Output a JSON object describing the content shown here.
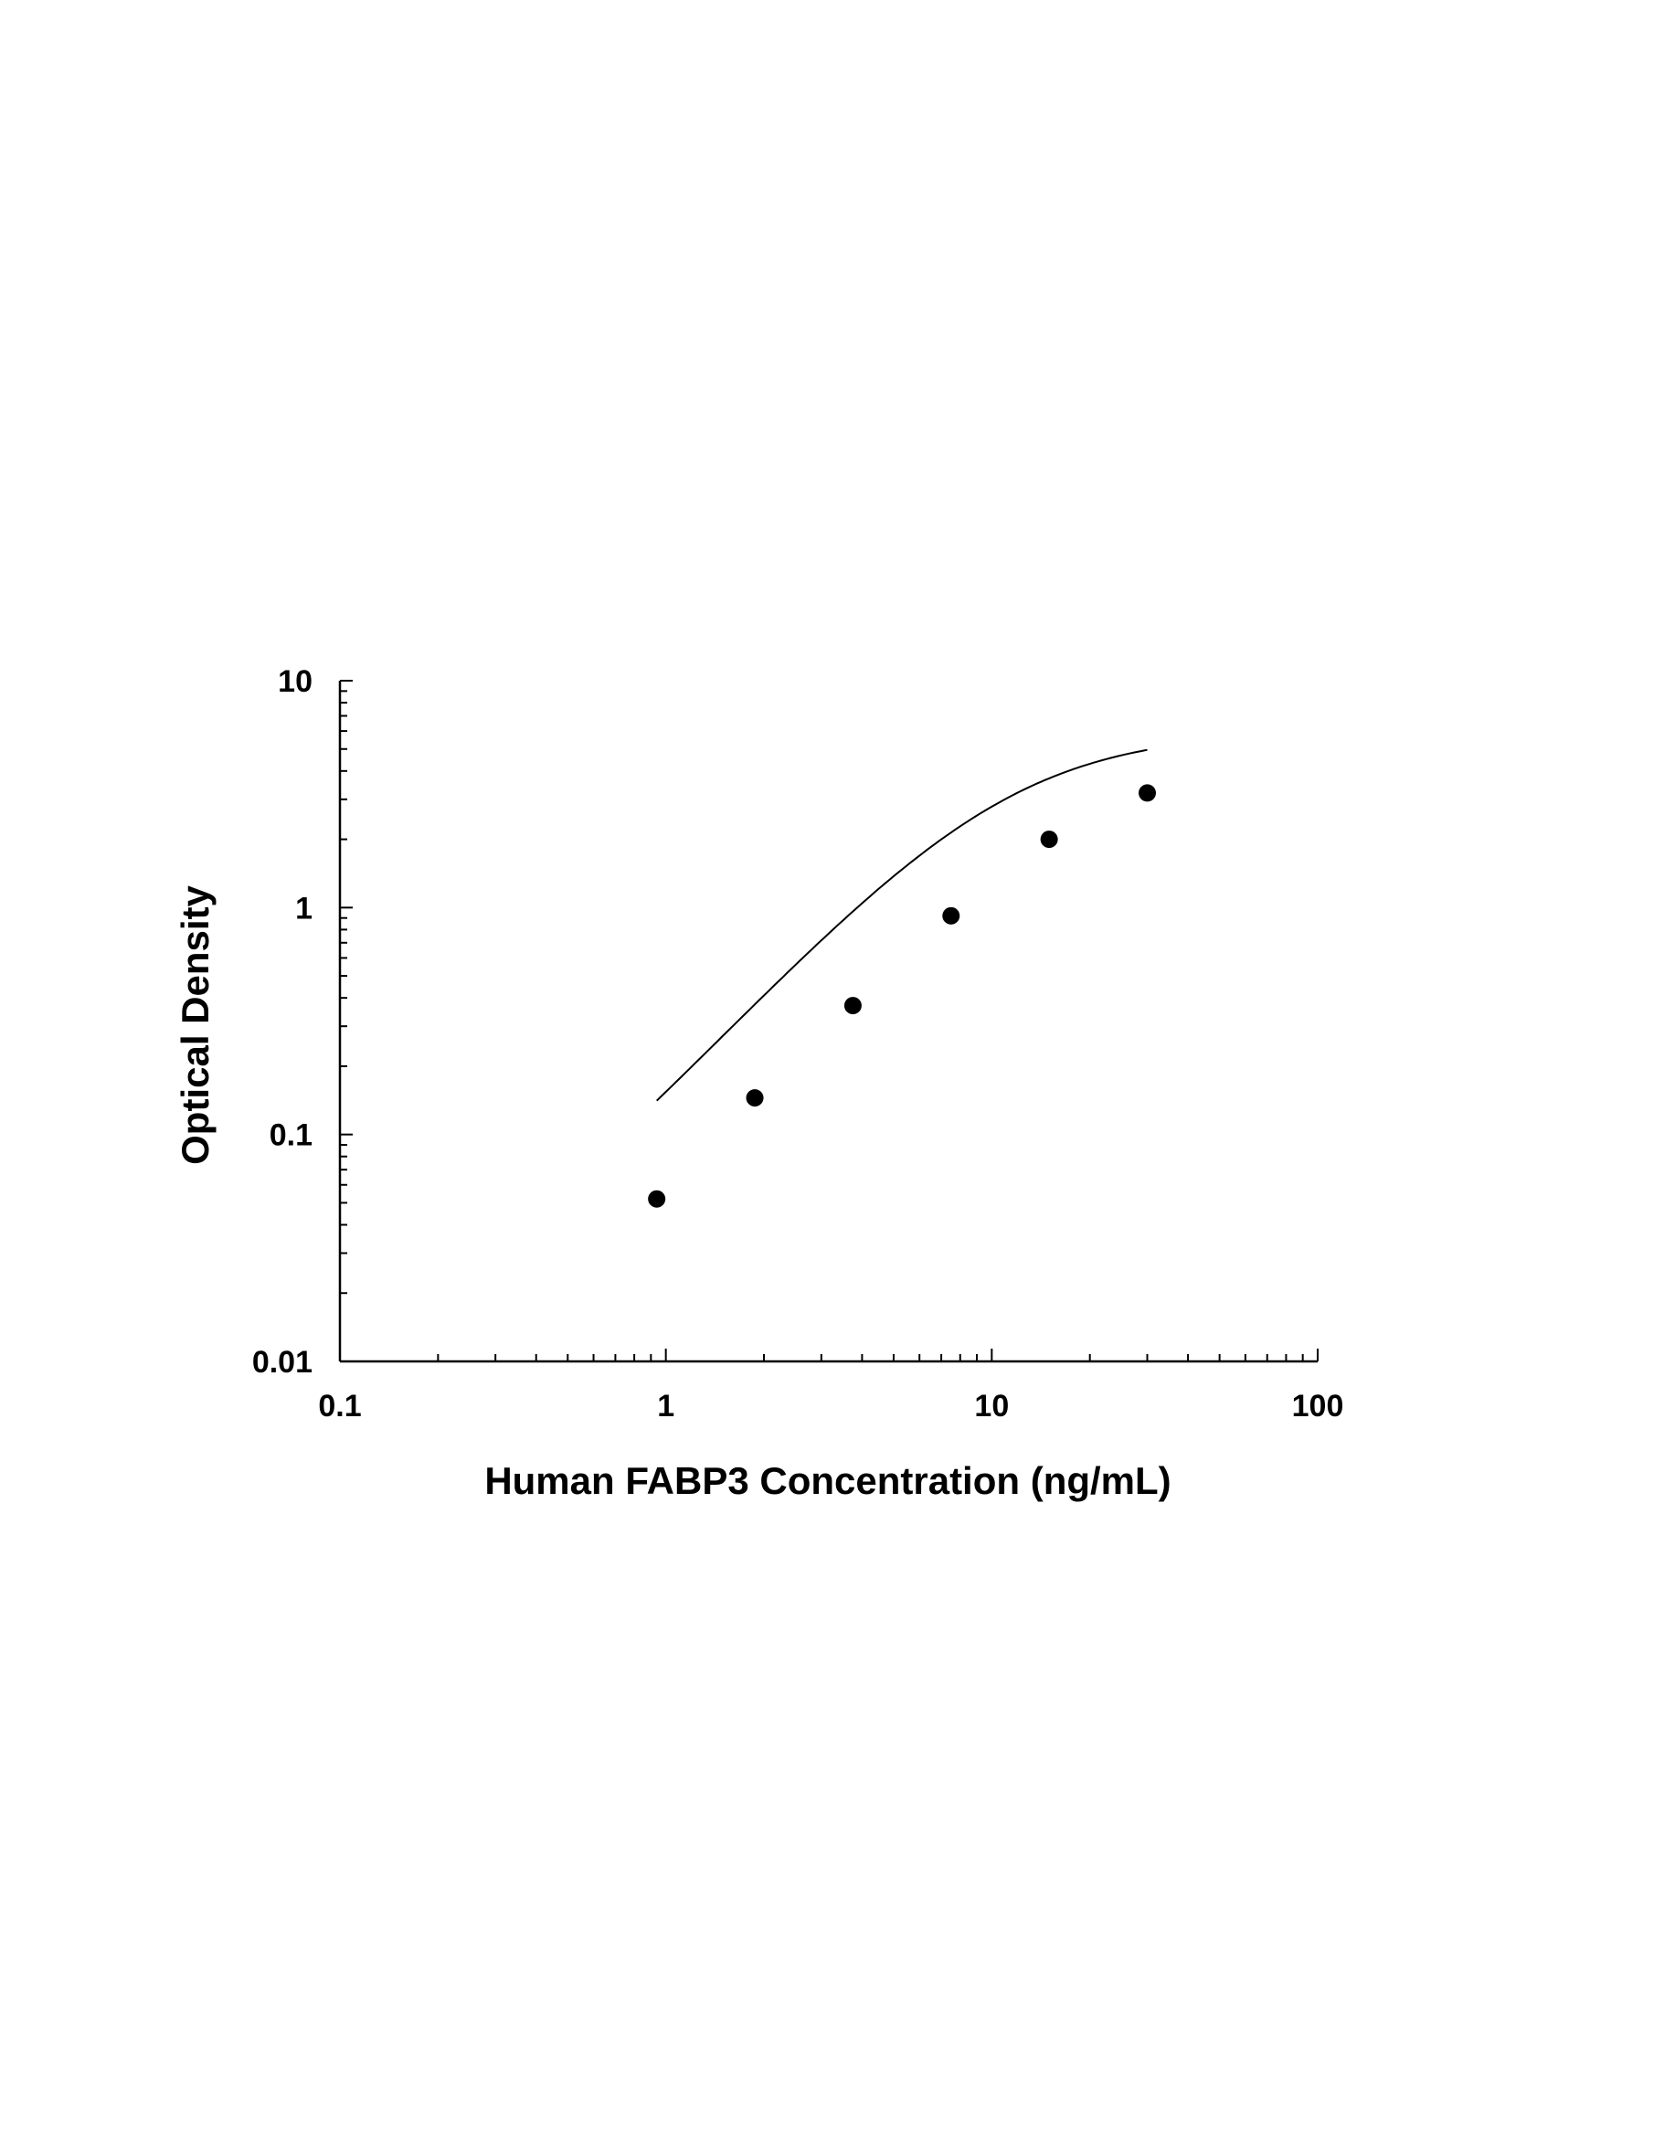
{
  "chart_data": {
    "type": "scatter",
    "title": "",
    "xlabel": "Human FABP3 Concentration (ng/mL)",
    "ylabel": "Optical Density",
    "xscale": "log",
    "yscale": "log",
    "xlim": [
      0.1,
      100
    ],
    "ylim": [
      0.01,
      10
    ],
    "x_ticks": [
      {
        "value": 0.1,
        "label": "0.1"
      },
      {
        "value": 1,
        "label": "1"
      },
      {
        "value": 10,
        "label": "10"
      },
      {
        "value": 100,
        "label": "100"
      }
    ],
    "y_ticks": [
      {
        "value": 0.01,
        "label": "0.01"
      },
      {
        "value": 0.1,
        "label": "0.1"
      },
      {
        "value": 1,
        "label": "1"
      },
      {
        "value": 10,
        "label": "10"
      }
    ],
    "grid": false,
    "legend": "none",
    "series": [
      {
        "marker": "circle",
        "color": "#000000",
        "points": [
          {
            "x": 0.9375,
            "y": 0.052
          },
          {
            "x": 1.875,
            "y": 0.145
          },
          {
            "x": 3.75,
            "y": 0.37
          },
          {
            "x": 7.5,
            "y": 0.92
          },
          {
            "x": 15,
            "y": 2.0
          },
          {
            "x": 30,
            "y": 3.2
          }
        ],
        "fit_curve": {
          "type": "4PL",
          "color": "#000000",
          "x_range": [
            0.9375,
            30
          ]
        }
      }
    ]
  }
}
